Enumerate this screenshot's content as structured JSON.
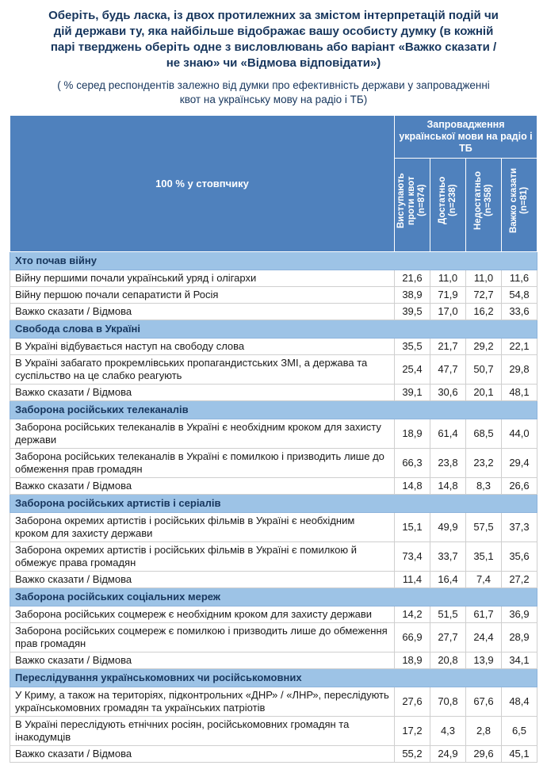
{
  "title": "Оберіть, будь ласка, із двох протилежних за змістом інтерпретацій подій чи дій держави ту, яка найбільше відображає вашу особисту думку (в кожній парі тверджень оберіть одне з висловлювань або варіант «Важко сказати / не знаю» чи «Відмова відповідати»)",
  "subtitle": "( % серед респондентів залежно від думки про ефективність держави у запровадженні квот на українську мову на радіо і ТБ)",
  "colors": {
    "header_blue": "#4F81BD",
    "section_blue": "#9DC3E6",
    "title_navy": "#17365D"
  },
  "table": {
    "corner_label": "100 % у стовпчику",
    "group_header": "Запровадження української мови на радіо і ТБ",
    "columns": [
      "Виступають проти квот (n=874)",
      "Достатньо (n=238)",
      "Недостатньо (n=358)",
      "Важко сказати (n=81)"
    ],
    "sections": [
      {
        "title": "Хто почав війну",
        "rows": [
          {
            "label": "Війну першими почали український уряд і олігархи",
            "values": [
              "21,6",
              "11,0",
              "11,0",
              "11,6"
            ]
          },
          {
            "label": "Війну першою почали сепаратисти й Росія",
            "values": [
              "38,9",
              "71,9",
              "72,7",
              "54,8"
            ]
          },
          {
            "label": "Важко сказати / Відмова",
            "values": [
              "39,5",
              "17,0",
              "16,2",
              "33,6"
            ]
          }
        ]
      },
      {
        "title": "Свобода слова в Україні",
        "rows": [
          {
            "label": "В Україні відбувається наступ на свободу слова",
            "values": [
              "35,5",
              "21,7",
              "29,2",
              "22,1"
            ]
          },
          {
            "label": "В Україні забагато прокремлівських пропагандистських ЗМІ, а держава та суспільство на це слабко реагують",
            "values": [
              "25,4",
              "47,7",
              "50,7",
              "29,8"
            ]
          },
          {
            "label": "Важко сказати / Відмова",
            "values": [
              "39,1",
              "30,6",
              "20,1",
              "48,1"
            ]
          }
        ]
      },
      {
        "title": "Заборона російських телеканалів",
        "rows": [
          {
            "label": "Заборона російських телеканалів в Україні є необхідним кроком для захисту держави",
            "values": [
              "18,9",
              "61,4",
              "68,5",
              "44,0"
            ]
          },
          {
            "label": "Заборона російських телеканалів в Україні є помилкою і призводить лише до обмеження прав громадян",
            "values": [
              "66,3",
              "23,8",
              "23,2",
              "29,4"
            ]
          },
          {
            "label": "Важко сказати / Відмова",
            "values": [
              "14,8",
              "14,8",
              "8,3",
              "26,6"
            ]
          }
        ]
      },
      {
        "title": "Заборона російських артистів і серіалів",
        "rows": [
          {
            "label": "Заборона окремих артистів і російських фільмів в Україні є необхідним кроком для захисту держави",
            "values": [
              "15,1",
              "49,9",
              "57,5",
              "37,3"
            ]
          },
          {
            "label": "Заборона окремих артистів і російських фільмів в Україні є помилкою й обмежує права громадян",
            "values": [
              "73,4",
              "33,7",
              "35,1",
              "35,6"
            ]
          },
          {
            "label": "Важко сказати / Відмова",
            "values": [
              "11,4",
              "16,4",
              "7,4",
              "27,2"
            ]
          }
        ]
      },
      {
        "title": "Заборона російських соціальних мереж",
        "rows": [
          {
            "label": "Заборона російських соцмереж є необхідним кроком для захисту держави",
            "values": [
              "14,2",
              "51,5",
              "61,7",
              "36,9"
            ]
          },
          {
            "label": "Заборона російських соцмереж є помилкою і призводить лише до обмеження прав громадян",
            "values": [
              "66,9",
              "27,7",
              "24,4",
              "28,9"
            ]
          },
          {
            "label": "Важко сказати / Відмова",
            "values": [
              "18,9",
              "20,8",
              "13,9",
              "34,1"
            ]
          }
        ]
      },
      {
        "title": "Переслідування українськомовних чи російськомовних",
        "rows": [
          {
            "label": "У Криму, а також на територіях, підконтрольних «ДНР» / «ЛНР», переслідують українськомовних громадян та українських патріотів",
            "values": [
              "27,6",
              "70,8",
              "67,6",
              "48,4"
            ]
          },
          {
            "label": "В Україні переслідують етнічних росіян, російськомовних громадян та інакодумців",
            "values": [
              "17,2",
              "4,3",
              "2,8",
              "6,5"
            ]
          },
          {
            "label": "Важко сказати / Відмова",
            "values": [
              "55,2",
              "24,9",
              "29,6",
              "45,1"
            ]
          }
        ]
      }
    ]
  }
}
